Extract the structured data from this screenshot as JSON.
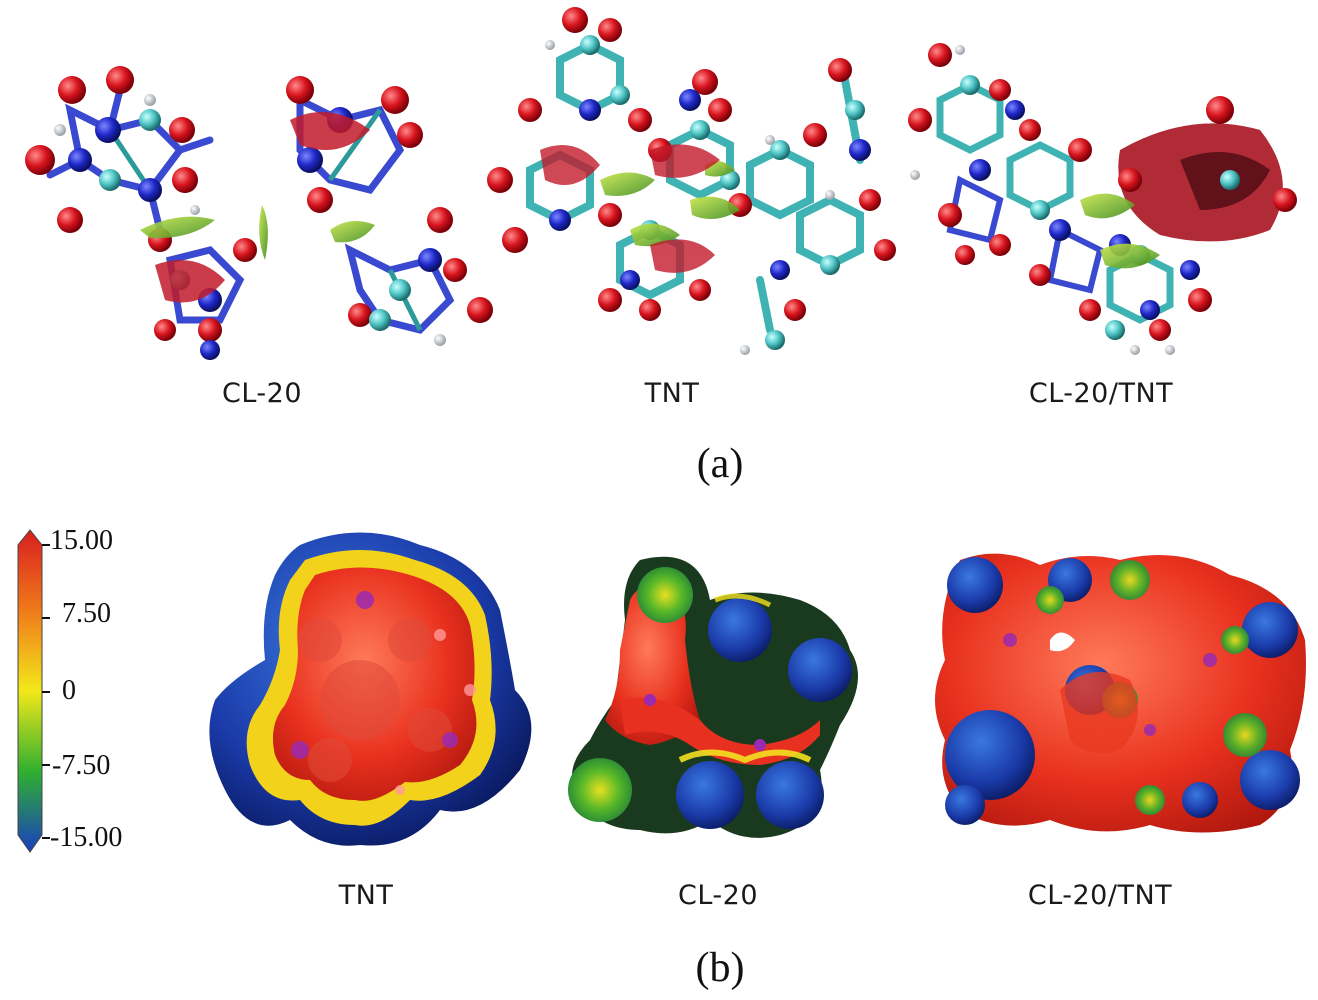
{
  "panel_a": {
    "label": "(a)",
    "molecules": [
      {
        "name": "CL-20"
      },
      {
        "name": "TNT"
      },
      {
        "name": "CL-20/TNT"
      }
    ]
  },
  "panel_b": {
    "label": "(b)",
    "molecules": [
      {
        "name": "TNT"
      },
      {
        "name": "CL-20"
      },
      {
        "name": "CL-20/TNT"
      }
    ],
    "colorbar": {
      "ticks": [
        "15.00",
        "7.50",
        "0",
        "-7.50",
        "-15.00"
      ],
      "colors": [
        "#d81e1e",
        "#f07a1a",
        "#f2e81a",
        "#2fb02f",
        "#1a3fbf"
      ]
    }
  }
}
